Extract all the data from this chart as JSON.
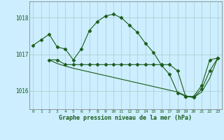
{
  "title": "Graphe pression niveau de la mer (hPa)",
  "bg_color": "#cceeff",
  "grid_color": "#aacccc",
  "line_color": "#1a5c1a",
  "xlim": [
    -0.5,
    23.5
  ],
  "ylim": [
    1015.5,
    1018.45
  ],
  "yticks": [
    1016,
    1017,
    1018
  ],
  "xticks": [
    0,
    1,
    2,
    3,
    4,
    5,
    6,
    7,
    8,
    9,
    10,
    11,
    12,
    13,
    14,
    15,
    16,
    17,
    18,
    19,
    20,
    21,
    22,
    23
  ],
  "series1": {
    "x": [
      0,
      1,
      2,
      3,
      4,
      5,
      6,
      7,
      8,
      9,
      10,
      11,
      12,
      13,
      14,
      15,
      16,
      17,
      18,
      19,
      20,
      21,
      22,
      23
    ],
    "y": [
      1017.25,
      1017.4,
      1017.55,
      1017.2,
      1017.15,
      1016.85,
      1017.15,
      1017.65,
      1017.9,
      1018.05,
      1018.1,
      1018.0,
      1017.8,
      1017.6,
      1017.3,
      1017.05,
      1016.7,
      1016.45,
      1015.95,
      1015.85,
      1015.85,
      1016.15,
      1016.85,
      1016.9
    ]
  },
  "series2": {
    "x": [
      2,
      3,
      4,
      5,
      6,
      7,
      8,
      9,
      10,
      11,
      12,
      13,
      14,
      15,
      16,
      17,
      18,
      19,
      20,
      21,
      22,
      23
    ],
    "y": [
      1016.85,
      1016.85,
      1016.72,
      1016.72,
      1016.72,
      1016.72,
      1016.72,
      1016.72,
      1016.72,
      1016.72,
      1016.72,
      1016.72,
      1016.72,
      1016.72,
      1016.72,
      1016.72,
      1016.55,
      1015.85,
      1015.82,
      1016.05,
      1016.55,
      1016.9
    ]
  },
  "series3": {
    "x": [
      2,
      3,
      4,
      5,
      6,
      7,
      8,
      9,
      10,
      11,
      12,
      13,
      14,
      15,
      16,
      17,
      18,
      19,
      20,
      21,
      22,
      23
    ],
    "y": [
      1016.85,
      1016.75,
      1016.68,
      1016.62,
      1016.57,
      1016.52,
      1016.47,
      1016.42,
      1016.37,
      1016.32,
      1016.27,
      1016.22,
      1016.17,
      1016.12,
      1016.07,
      1016.02,
      1015.97,
      1015.87,
      1015.82,
      1015.97,
      1016.35,
      1016.9
    ]
  }
}
